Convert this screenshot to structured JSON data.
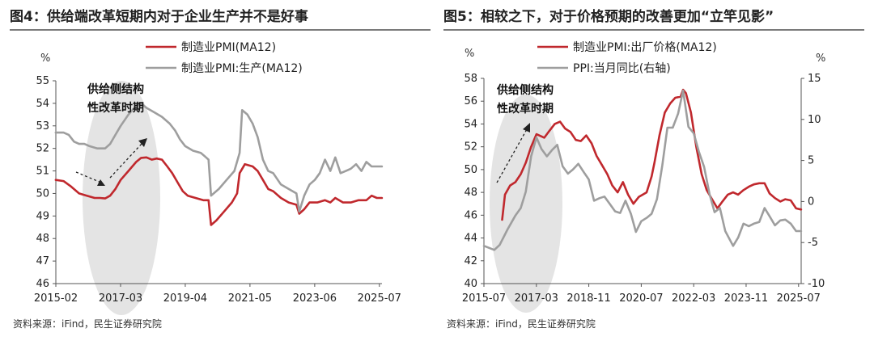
{
  "chart_data": [
    {
      "type": "line",
      "title": "图4：供给端改革短期内对于企业生产并不是好事",
      "ylabel": "%",
      "ylim": [
        46,
        55
      ],
      "yticks": [
        "46",
        "47",
        "48",
        "49",
        "50",
        "51",
        "52",
        "53",
        "54",
        "55"
      ],
      "xlim": [
        2015.083,
        2025.583
      ],
      "xticks": [
        {
          "value": 2015.083,
          "label": "2015-02"
        },
        {
          "value": 2017.167,
          "label": "2017-03"
        },
        {
          "value": 2019.25,
          "label": "2019-04"
        },
        {
          "value": 2021.333,
          "label": "2021-05"
        },
        {
          "value": 2023.417,
          "label": "2023-06"
        },
        {
          "value": 2025.5,
          "label": "2025-07"
        }
      ],
      "legend_position": "top-center",
      "series": [
        {
          "name": "制造业PMI(MA12)",
          "color": "#c0282d",
          "points": [
            [
              2015.08,
              50.6
            ],
            [
              2015.33,
              50.55
            ],
            [
              2015.58,
              50.3
            ],
            [
              2015.83,
              50.0
            ],
            [
              2016.08,
              49.9
            ],
            [
              2016.33,
              49.8
            ],
            [
              2016.5,
              49.8
            ],
            [
              2016.67,
              49.78
            ],
            [
              2016.83,
              49.9
            ],
            [
              2017.0,
              50.2
            ],
            [
              2017.17,
              50.6
            ],
            [
              2017.42,
              51.0
            ],
            [
              2017.67,
              51.4
            ],
            [
              2017.83,
              51.58
            ],
            [
              2018.0,
              51.6
            ],
            [
              2018.17,
              51.5
            ],
            [
              2018.33,
              51.55
            ],
            [
              2018.5,
              51.5
            ],
            [
              2018.67,
              51.2
            ],
            [
              2018.83,
              50.9
            ],
            [
              2019.0,
              50.5
            ],
            [
              2019.17,
              50.1
            ],
            [
              2019.33,
              49.9
            ],
            [
              2019.58,
              49.8
            ],
            [
              2019.83,
              49.7
            ],
            [
              2020.0,
              49.7
            ],
            [
              2020.08,
              48.6
            ],
            [
              2020.25,
              48.8
            ],
            [
              2020.5,
              49.2
            ],
            [
              2020.75,
              49.6
            ],
            [
              2020.92,
              50.0
            ],
            [
              2021.0,
              50.9
            ],
            [
              2021.17,
              51.3
            ],
            [
              2021.42,
              51.2
            ],
            [
              2021.58,
              51.0
            ],
            [
              2021.75,
              50.6
            ],
            [
              2021.92,
              50.2
            ],
            [
              2022.08,
              50.1
            ],
            [
              2022.33,
              49.8
            ],
            [
              2022.58,
              49.6
            ],
            [
              2022.83,
              49.5
            ],
            [
              2022.92,
              49.1
            ],
            [
              2023.08,
              49.3
            ],
            [
              2023.25,
              49.6
            ],
            [
              2023.5,
              49.6
            ],
            [
              2023.75,
              49.7
            ],
            [
              2023.92,
              49.6
            ],
            [
              2024.08,
              49.8
            ],
            [
              2024.33,
              49.6
            ],
            [
              2024.58,
              49.6
            ],
            [
              2024.83,
              49.7
            ],
            [
              2025.08,
              49.7
            ],
            [
              2025.25,
              49.9
            ],
            [
              2025.42,
              49.8
            ],
            [
              2025.58,
              49.8
            ]
          ]
        },
        {
          "name": "制造业PMI:生产(MA12)",
          "color": "#9e9e9e",
          "points": [
            [
              2015.08,
              52.7
            ],
            [
              2015.33,
              52.7
            ],
            [
              2015.5,
              52.6
            ],
            [
              2015.67,
              52.3
            ],
            [
              2015.83,
              52.2
            ],
            [
              2016.0,
              52.2
            ],
            [
              2016.17,
              52.1
            ],
            [
              2016.42,
              52.0
            ],
            [
              2016.67,
              52.0
            ],
            [
              2016.83,
              52.2
            ],
            [
              2017.0,
              52.6
            ],
            [
              2017.17,
              53.0
            ],
            [
              2017.42,
              53.5
            ],
            [
              2017.67,
              53.9
            ],
            [
              2017.83,
              54.0
            ],
            [
              2018.0,
              53.8
            ],
            [
              2018.25,
              53.6
            ],
            [
              2018.5,
              53.4
            ],
            [
              2018.75,
              53.1
            ],
            [
              2018.92,
              52.8
            ],
            [
              2019.08,
              52.4
            ],
            [
              2019.25,
              52.1
            ],
            [
              2019.5,
              51.9
            ],
            [
              2019.75,
              51.8
            ],
            [
              2019.92,
              51.6
            ],
            [
              2020.0,
              51.5
            ],
            [
              2020.08,
              49.9
            ],
            [
              2020.33,
              50.2
            ],
            [
              2020.58,
              50.6
            ],
            [
              2020.83,
              51.0
            ],
            [
              2021.0,
              51.8
            ],
            [
              2021.08,
              53.7
            ],
            [
              2021.25,
              53.5
            ],
            [
              2021.42,
              53.1
            ],
            [
              2021.58,
              52.5
            ],
            [
              2021.75,
              51.5
            ],
            [
              2021.92,
              51.0
            ],
            [
              2022.08,
              50.9
            ],
            [
              2022.33,
              50.4
            ],
            [
              2022.58,
              50.2
            ],
            [
              2022.83,
              50.0
            ],
            [
              2022.92,
              49.2
            ],
            [
              2023.08,
              49.9
            ],
            [
              2023.25,
              50.4
            ],
            [
              2023.42,
              50.6
            ],
            [
              2023.58,
              50.9
            ],
            [
              2023.75,
              51.5
            ],
            [
              2023.92,
              51.0
            ],
            [
              2024.08,
              51.6
            ],
            [
              2024.25,
              50.9
            ],
            [
              2024.42,
              51.0
            ],
            [
              2024.58,
              51.1
            ],
            [
              2024.75,
              51.3
            ],
            [
              2024.92,
              51.0
            ],
            [
              2025.08,
              51.4
            ],
            [
              2025.25,
              51.2
            ],
            [
              2025.42,
              51.2
            ],
            [
              2025.58,
              51.2
            ]
          ]
        }
      ],
      "annotations": [
        {
          "text_lines": [
            "供给侧结构",
            "性改革时期"
          ],
          "position": "upper-left"
        }
      ]
    },
    {
      "type": "line",
      "title": "图5：相较之下，对于价格预期的改善更加“立竿见影”",
      "ylabel": "%",
      "y2label": "%",
      "ylim": [
        40,
        58
      ],
      "y2lim": [
        -10,
        15
      ],
      "yticks": [
        "40",
        "42",
        "44",
        "46",
        "48",
        "50",
        "52",
        "54",
        "56",
        "58"
      ],
      "y2ticks": [
        "-10",
        "-5",
        "0",
        "5",
        "10",
        "15"
      ],
      "xlim": [
        2015.5,
        2025.583
      ],
      "xticks": [
        {
          "value": 2015.5,
          "label": "2015-07"
        },
        {
          "value": 2017.167,
          "label": "2017-03"
        },
        {
          "value": 2018.833,
          "label": "2018-11"
        },
        {
          "value": 2020.5,
          "label": "2020-07"
        },
        {
          "value": 2022.167,
          "label": "2022-03"
        },
        {
          "value": 2023.833,
          "label": "2023-11"
        },
        {
          "value": 2025.5,
          "label": "2025-07"
        }
      ],
      "legend_position": "top-center",
      "series": [
        {
          "name": "制造业PMI:出厂价格(MA12)",
          "color": "#c0282d",
          "axis": "left",
          "points": [
            [
              2016.08,
              45.6
            ],
            [
              2016.17,
              47.8
            ],
            [
              2016.33,
              48.6
            ],
            [
              2016.5,
              48.9
            ],
            [
              2016.67,
              49.6
            ],
            [
              2016.83,
              50.6
            ],
            [
              2017.0,
              52.0
            ],
            [
              2017.17,
              53.1
            ],
            [
              2017.42,
              52.8
            ],
            [
              2017.58,
              53.4
            ],
            [
              2017.75,
              54.0
            ],
            [
              2017.92,
              54.2
            ],
            [
              2018.08,
              53.6
            ],
            [
              2018.25,
              53.3
            ],
            [
              2018.42,
              52.6
            ],
            [
              2018.58,
              52.5
            ],
            [
              2018.75,
              53.0
            ],
            [
              2018.92,
              52.3
            ],
            [
              2019.08,
              51.2
            ],
            [
              2019.25,
              50.4
            ],
            [
              2019.42,
              49.6
            ],
            [
              2019.58,
              48.6
            ],
            [
              2019.75,
              48.0
            ],
            [
              2019.92,
              48.9
            ],
            [
              2020.08,
              47.8
            ],
            [
              2020.25,
              47.0
            ],
            [
              2020.42,
              47.6
            ],
            [
              2020.67,
              48.0
            ],
            [
              2020.83,
              49.4
            ],
            [
              2020.92,
              50.6
            ],
            [
              2021.08,
              53.0
            ],
            [
              2021.25,
              55.0
            ],
            [
              2021.42,
              55.8
            ],
            [
              2021.58,
              56.3
            ],
            [
              2021.75,
              56.4
            ],
            [
              2021.83,
              57.0
            ],
            [
              2021.92,
              56.7
            ],
            [
              2022.08,
              55.0
            ],
            [
              2022.25,
              52.0
            ],
            [
              2022.42,
              49.6
            ],
            [
              2022.58,
              48.2
            ],
            [
              2022.75,
              47.4
            ],
            [
              2022.92,
              46.6
            ],
            [
              2023.08,
              47.2
            ],
            [
              2023.25,
              47.8
            ],
            [
              2023.42,
              48.0
            ],
            [
              2023.58,
              47.8
            ],
            [
              2023.75,
              48.2
            ],
            [
              2023.92,
              48.5
            ],
            [
              2024.08,
              48.7
            ],
            [
              2024.25,
              48.8
            ],
            [
              2024.42,
              48.8
            ],
            [
              2024.58,
              47.9
            ],
            [
              2024.75,
              47.5
            ],
            [
              2024.92,
              47.2
            ],
            [
              2025.08,
              47.4
            ],
            [
              2025.25,
              47.3
            ],
            [
              2025.42,
              46.6
            ],
            [
              2025.58,
              46.5
            ]
          ]
        },
        {
          "name": "PPI:当月同比(右轴)",
          "color": "#9e9e9e",
          "axis": "right",
          "points": [
            [
              2015.5,
              -5.4
            ],
            [
              2015.83,
              -5.9
            ],
            [
              2016.0,
              -5.3
            ],
            [
              2016.25,
              -3.4
            ],
            [
              2016.5,
              -1.7
            ],
            [
              2016.67,
              -0.8
            ],
            [
              2016.83,
              1.2
            ],
            [
              2017.0,
              5.5
            ],
            [
              2017.17,
              7.8
            ],
            [
              2017.33,
              6.4
            ],
            [
              2017.5,
              5.5
            ],
            [
              2017.67,
              6.3
            ],
            [
              2017.83,
              6.9
            ],
            [
              2018.0,
              4.3
            ],
            [
              2018.17,
              3.4
            ],
            [
              2018.33,
              3.9
            ],
            [
              2018.5,
              4.6
            ],
            [
              2018.67,
              3.6
            ],
            [
              2018.83,
              2.7
            ],
            [
              2019.0,
              0.1
            ],
            [
              2019.17,
              0.4
            ],
            [
              2019.33,
              0.6
            ],
            [
              2019.5,
              -0.3
            ],
            [
              2019.67,
              -1.2
            ],
            [
              2019.83,
              -1.4
            ],
            [
              2020.0,
              0.1
            ],
            [
              2020.17,
              -1.5
            ],
            [
              2020.33,
              -3.7
            ],
            [
              2020.5,
              -2.4
            ],
            [
              2020.67,
              -2.0
            ],
            [
              2020.83,
              -1.5
            ],
            [
              2021.0,
              0.3
            ],
            [
              2021.17,
              4.4
            ],
            [
              2021.33,
              9.0
            ],
            [
              2021.5,
              9.0
            ],
            [
              2021.67,
              10.7
            ],
            [
              2021.83,
              13.5
            ],
            [
              2022.0,
              9.1
            ],
            [
              2022.17,
              8.3
            ],
            [
              2022.33,
              6.1
            ],
            [
              2022.5,
              4.2
            ],
            [
              2022.67,
              0.9
            ],
            [
              2022.83,
              -1.3
            ],
            [
              2023.0,
              -0.8
            ],
            [
              2023.17,
              -3.6
            ],
            [
              2023.42,
              -5.4
            ],
            [
              2023.58,
              -4.4
            ],
            [
              2023.75,
              -2.7
            ],
            [
              2023.92,
              -3.0
            ],
            [
              2024.08,
              -2.7
            ],
            [
              2024.25,
              -2.5
            ],
            [
              2024.42,
              -0.8
            ],
            [
              2024.58,
              -1.8
            ],
            [
              2024.75,
              -2.9
            ],
            [
              2024.92,
              -2.3
            ],
            [
              2025.08,
              -2.2
            ],
            [
              2025.25,
              -2.7
            ],
            [
              2025.42,
              -3.6
            ],
            [
              2025.58,
              -3.6
            ]
          ]
        }
      ],
      "annotations": [
        {
          "text_lines": [
            "供给侧结构",
            "性改革时期"
          ],
          "position": "upper-left"
        }
      ]
    }
  ],
  "sources": [
    "资料来源：iFind，民生证券研究院",
    "资料来源：iFind，民生证券研究院"
  ]
}
